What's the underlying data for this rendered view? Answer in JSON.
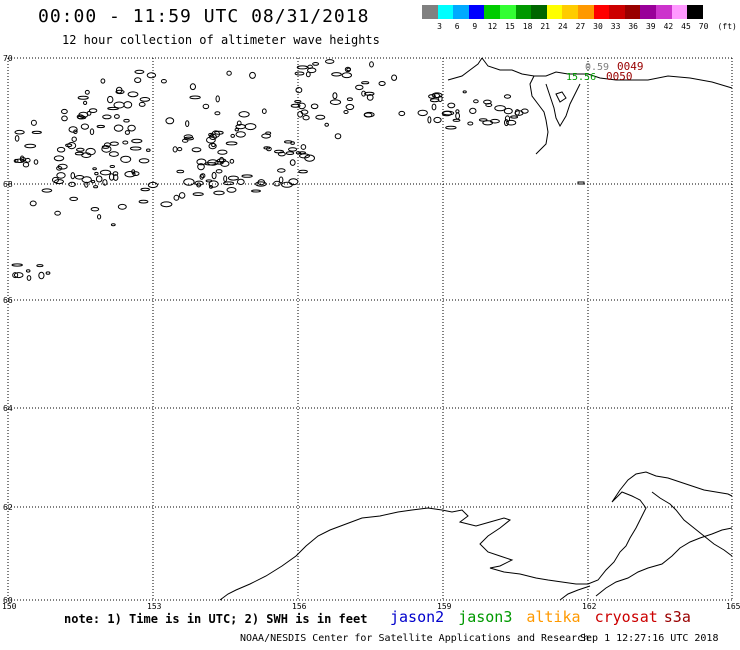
{
  "header": {
    "title": "00:00 - 11:59 UTC 08/31/2018",
    "subtitle": "12 hour collection of altimeter wave heights"
  },
  "color_scale": {
    "swatches": [
      "#808080",
      "#00ffff",
      "#00aaff",
      "#0000ff",
      "#00cc00",
      "#33ff33",
      "#009900",
      "#006600",
      "#ffff00",
      "#ffcc00",
      "#ff9900",
      "#ff0000",
      "#cc0000",
      "#990000",
      "#990099",
      "#cc33cc",
      "#ff99ff",
      "#000000"
    ],
    "labels": [
      "3",
      "6",
      "9",
      "12",
      "15",
      "18",
      "21",
      "24",
      "27",
      "30",
      "33",
      "36",
      "39",
      "42",
      "45",
      "70",
      "(ft)"
    ]
  },
  "map": {
    "latitude_labels": [
      "70",
      "68",
      "66",
      "64",
      "62",
      "60"
    ],
    "longitude_labels": [
      "150",
      "153",
      "156",
      "159",
      "162",
      "165"
    ],
    "track_labels": [
      {
        "text": "0.59",
        "color": "#808080"
      },
      {
        "text": "0049",
        "color": "#990000"
      },
      {
        "text": "15.56",
        "color": "#009900"
      },
      {
        "text": "0050",
        "color": "#990000"
      }
    ]
  },
  "footer": {
    "note": "note: 1) Time is in UTC; 2) SWH is in feet",
    "satellites": [
      {
        "name": "jason2",
        "color": "#0000cc"
      },
      {
        "name": "jason3",
        "color": "#009900"
      },
      {
        "name": "altika",
        "color": "#ff9900"
      },
      {
        "name": "cryosat",
        "color": "#cc0000"
      },
      {
        "name": "s3a",
        "color": "#990000"
      }
    ],
    "credit": "NOAA/NESDIS Center for Satellite Applications and Research",
    "timestamp": "Sep  1 12:27:16 UTC 2018"
  }
}
